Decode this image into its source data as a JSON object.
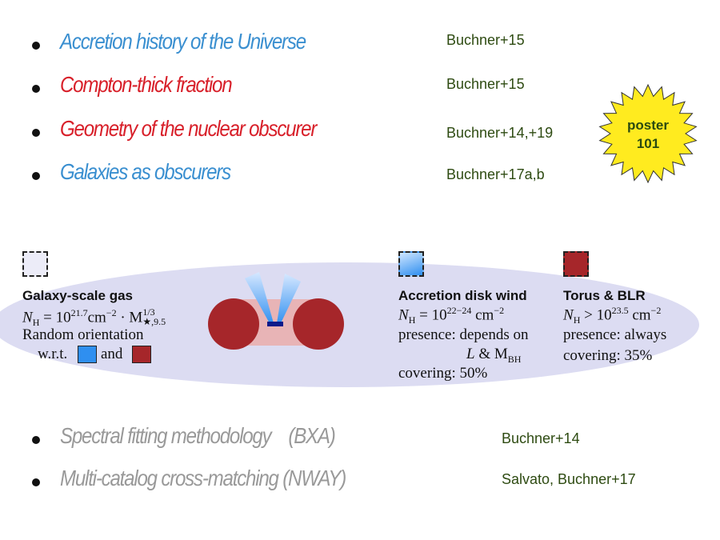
{
  "bullets_top": [
    {
      "text": "Accretion history of the Universe",
      "color": "#3a8fd0",
      "ref": "Buchner+15"
    },
    {
      "text": "Compton-thick fraction",
      "color": "#d8202a",
      "ref": "Buchner+15"
    },
    {
      "text": "Geometry of the nuclear obscurer",
      "color": "#d8202a",
      "ref": "Buchner+14,+19"
    },
    {
      "text": "Galaxies as obscurers",
      "color": "#3a8fd0",
      "ref": "Buchner+17a,b"
    }
  ],
  "poster_badge": {
    "line1": "poster",
    "line2": "101",
    "color": "#ffeb1f"
  },
  "galaxy_gas": {
    "title": "Galaxy-scale gas",
    "nh_label": "N",
    "nh_sub": "H",
    "nh_eq": " = 10",
    "nh_exp": "21.7",
    "nh_unit": "cm",
    "nh_unit_exp": "−2",
    "nh_dot": " · M",
    "nh_m_sup": "1/3",
    "nh_m_sub": "★,9.5",
    "orientation": "Random orientation",
    "wrt": "w.r.t.",
    "and": "and"
  },
  "accretion_wind": {
    "title": "Accretion disk wind",
    "nh_label": "N",
    "nh_sub": "H",
    "nh_eq": " = 10",
    "nh_exp": "22−24",
    "nh_unit": " cm",
    "nh_unit_exp": "−2",
    "presence": "presence: depends on",
    "depends": "L",
    "amp": " & M",
    "bh_sub": "BH",
    "covering": "covering: 50%",
    "color": "#2f8ff0"
  },
  "torus": {
    "title": "Torus & BLR",
    "nh_label": "N",
    "nh_sub": "H",
    "nh_eq": " > 10",
    "nh_exp": "23.5",
    "nh_unit": " cm",
    "nh_unit_exp": "−2",
    "presence": "presence: always",
    "covering": "covering: 35%",
    "color": "#a6262a"
  },
  "bullets_bottom": [
    {
      "text": "Spectral fitting methodology    (BXA)",
      "color": "#999999",
      "ref": "Buchner+14"
    },
    {
      "text": "Multi-catalog cross-matching (NWAY)",
      "color": "#999999",
      "ref": "Salvato, Buchner+17"
    }
  ]
}
